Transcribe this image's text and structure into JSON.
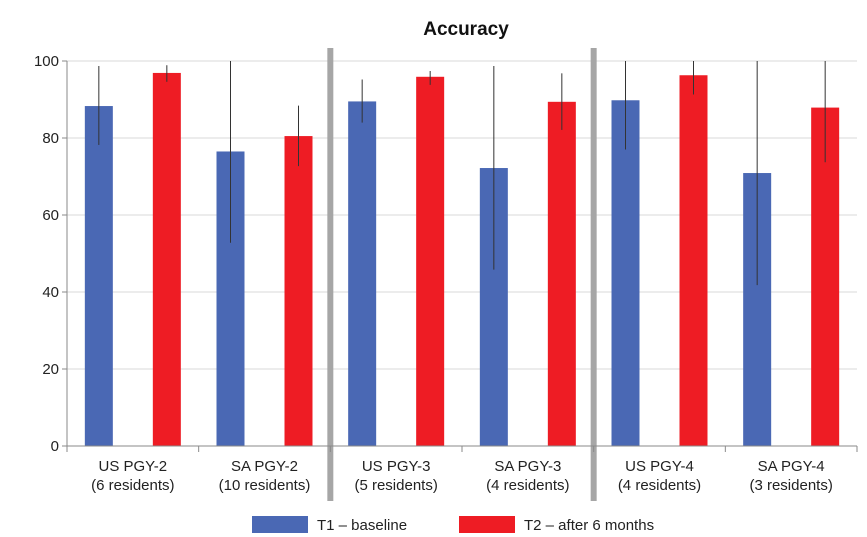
{
  "chart_data": {
    "type": "bar",
    "title": "Accuracy",
    "xlabel": "",
    "ylabel": "",
    "ylim": [
      0,
      100
    ],
    "yticks": [
      0,
      20,
      40,
      60,
      80,
      100
    ],
    "grid": "horizontal",
    "legend_position": "bottom",
    "categories": [
      [
        "US PGY-2",
        "(6 residents)"
      ],
      [
        "SA PGY-2",
        "(10 residents)"
      ],
      [
        "US PGY-3",
        "(5 residents)"
      ],
      [
        "SA PGY-3",
        "(4 residents)"
      ],
      [
        "US PGY-4",
        "(4 residents)"
      ],
      [
        "SA PGY-4",
        "(3 residents)"
      ]
    ],
    "group_separators_after": [
      1,
      3
    ],
    "series": [
      {
        "name": "T1 – baseline",
        "color": "#4a68b4",
        "values": [
          88.3,
          76.5,
          89.5,
          72.2,
          89.8,
          70.9
        ],
        "error_low": [
          78.2,
          52.8,
          84.0,
          45.8,
          77.0,
          41.8
        ],
        "error_high": [
          98.7,
          100,
          95.2,
          98.7,
          100,
          100
        ]
      },
      {
        "name": "T2 – after 6 months",
        "color": "#ee1c24",
        "values": [
          96.9,
          80.5,
          95.9,
          89.4,
          96.3,
          87.9
        ],
        "error_low": [
          94.6,
          72.7,
          93.8,
          82.1,
          91.3,
          73.7
        ],
        "error_high": [
          98.9,
          88.4,
          97.4,
          96.8,
          100,
          100
        ]
      }
    ]
  }
}
